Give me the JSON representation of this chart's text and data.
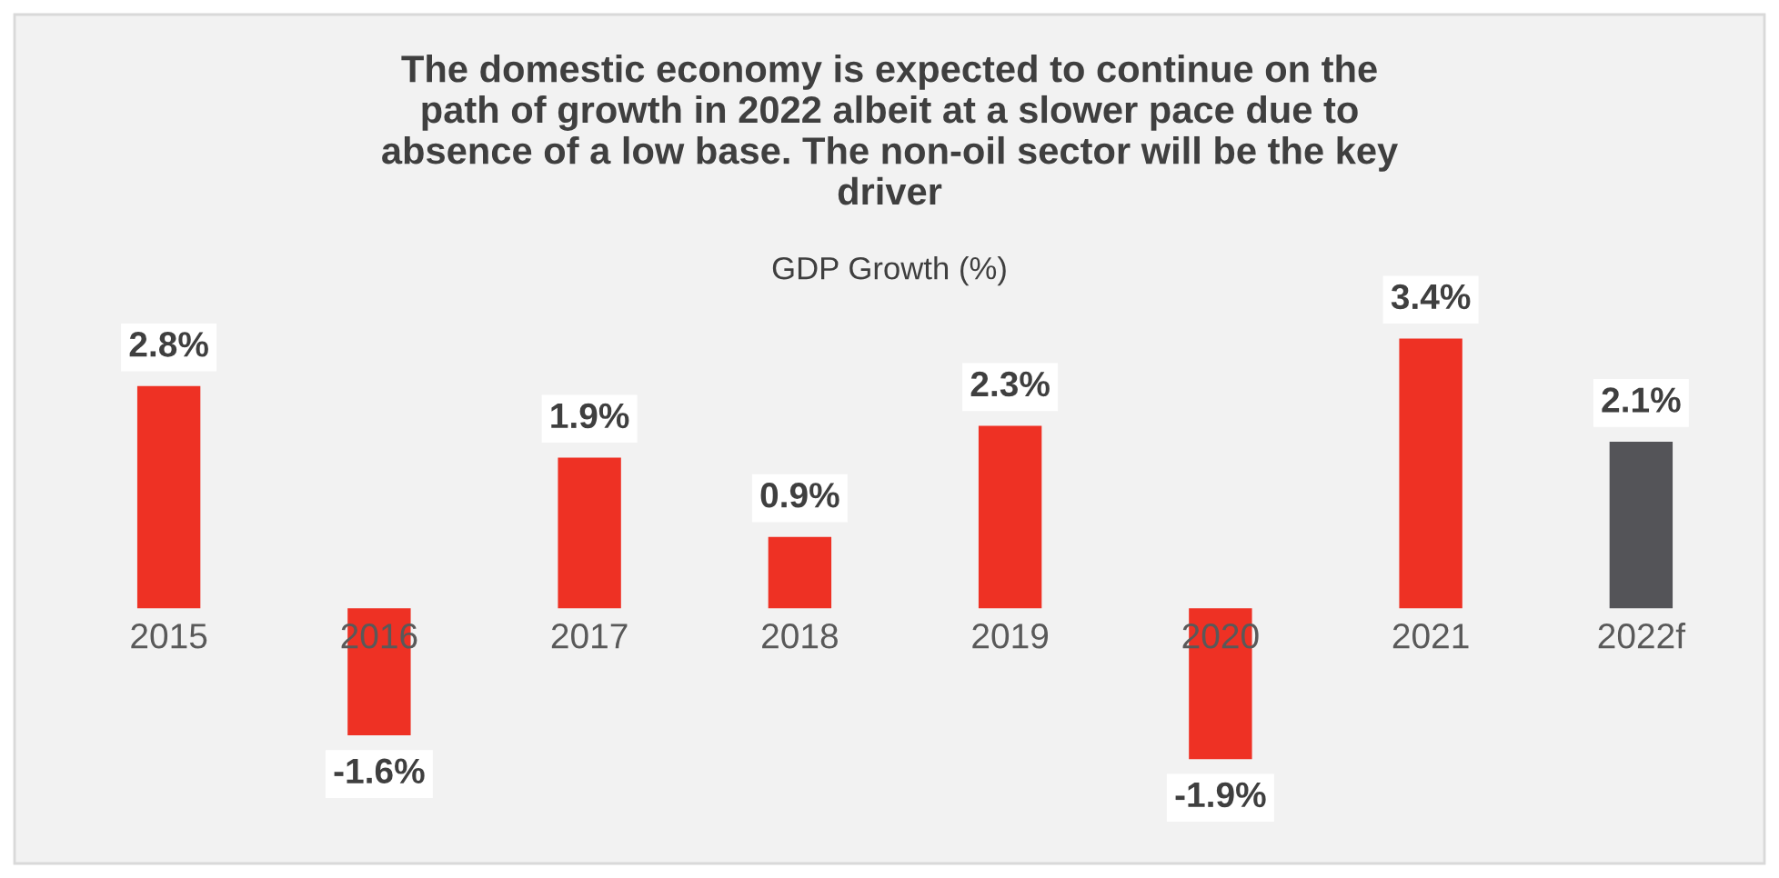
{
  "chart_data": {
    "type": "bar",
    "title": "The domestic economy is expected to continue on the\npath of growth in 2022 albeit at a slower pace due to\nabsence of a low base. The non-oil sector will be the key\ndriver",
    "subtitle": "GDP Growth (%)",
    "categories": [
      "2015",
      "2016",
      "2017",
      "2018",
      "2019",
      "2020",
      "2021",
      "2022f"
    ],
    "values": [
      2.8,
      -1.6,
      1.9,
      0.9,
      2.3,
      -1.9,
      3.4,
      2.1
    ],
    "value_labels": [
      "2.8%",
      "-1.6%",
      "1.9%",
      "0.9%",
      "2.3%",
      "-1.9%",
      "3.4%",
      "2.1%"
    ],
    "colors": [
      "#ee3124",
      "#ee3124",
      "#ee3124",
      "#ee3124",
      "#ee3124",
      "#ee3124",
      "#ee3124",
      "#545458"
    ]
  }
}
